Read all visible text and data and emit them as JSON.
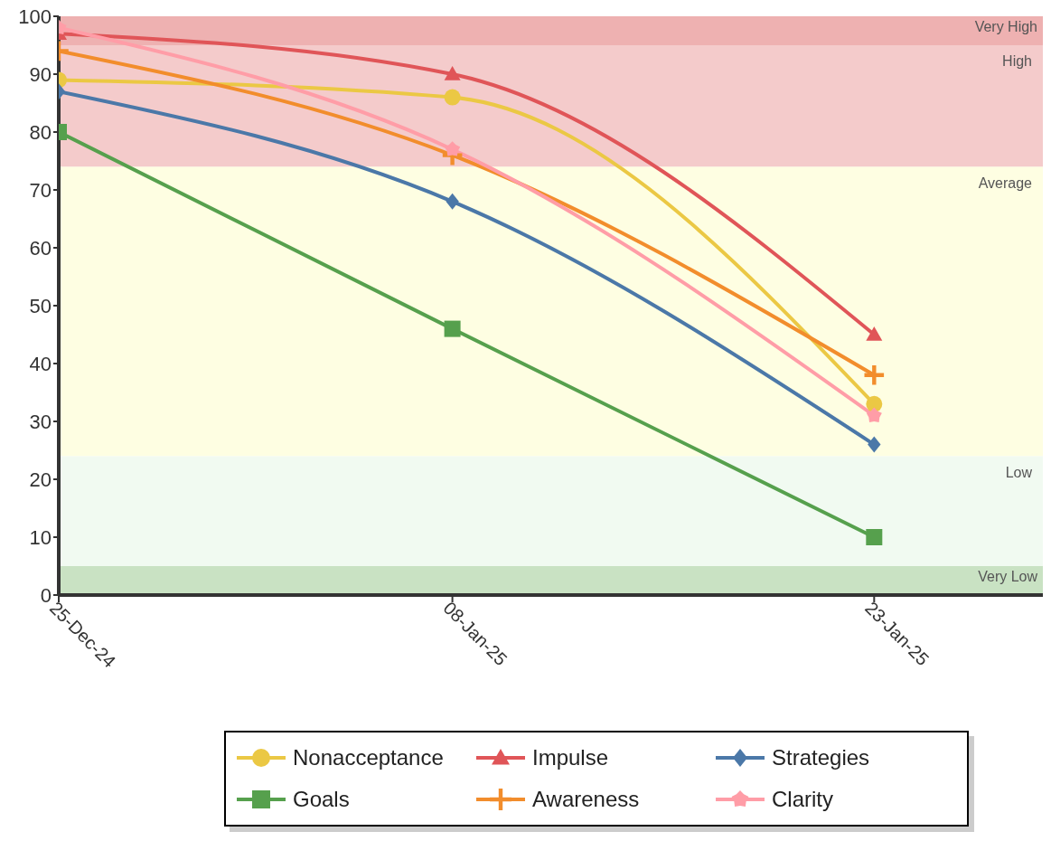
{
  "chart_data": {
    "type": "line",
    "x": [
      "2024-12-25",
      "2025-01-08",
      "2025-01-23"
    ],
    "xlim": [
      "2024-12-25",
      "2025-01-29"
    ],
    "xticks": [
      {
        "value": "2024-12-25",
        "label": "25-Dec-24"
      },
      {
        "value": "2025-01-08",
        "label": "08-Jan-25"
      },
      {
        "value": "2025-01-23",
        "label": "23-Jan-25"
      }
    ],
    "ylim": [
      0,
      100
    ],
    "yticks": [
      0,
      10,
      20,
      30,
      40,
      50,
      60,
      70,
      80,
      90,
      100
    ],
    "grid": false,
    "legend": "bottom",
    "line_style": "solid",
    "bands": [
      {
        "axis": "y",
        "from": 95,
        "to": 100,
        "label": "Very High",
        "color": "#eeb1b1"
      },
      {
        "axis": "y",
        "from": 74,
        "to": 95,
        "label": "High",
        "color": "#f4cbcb"
      },
      {
        "axis": "y",
        "from": 24,
        "to": 74,
        "label": "Average",
        "color": "#fefee2"
      },
      {
        "axis": "y",
        "from": 5,
        "to": 24,
        "label": "Low",
        "color": "#f1faf1"
      },
      {
        "axis": "y",
        "from": 0,
        "to": 5,
        "label": "Very Low",
        "color": "#c9e2c3"
      }
    ],
    "series": [
      {
        "name": "Nonacceptance",
        "color": "#ebc844",
        "marker": "circle",
        "values": [
          89,
          86,
          33
        ]
      },
      {
        "name": "Impulse",
        "color": "#e05558",
        "marker": "triangle",
        "values": [
          97,
          90,
          45
        ]
      },
      {
        "name": "Strategies",
        "color": "#4b78a8",
        "marker": "diamond",
        "values": [
          87,
          68,
          26
        ]
      },
      {
        "name": "Goals",
        "color": "#56a04d",
        "marker": "square",
        "values": [
          80,
          46,
          10
        ]
      },
      {
        "name": "Awareness",
        "color": "#f28d2c",
        "marker": "cross",
        "values": [
          94,
          76,
          38
        ]
      },
      {
        "name": "Clarity",
        "color": "#ff9da7",
        "marker": "star",
        "values": [
          98,
          77,
          31
        ]
      }
    ]
  }
}
